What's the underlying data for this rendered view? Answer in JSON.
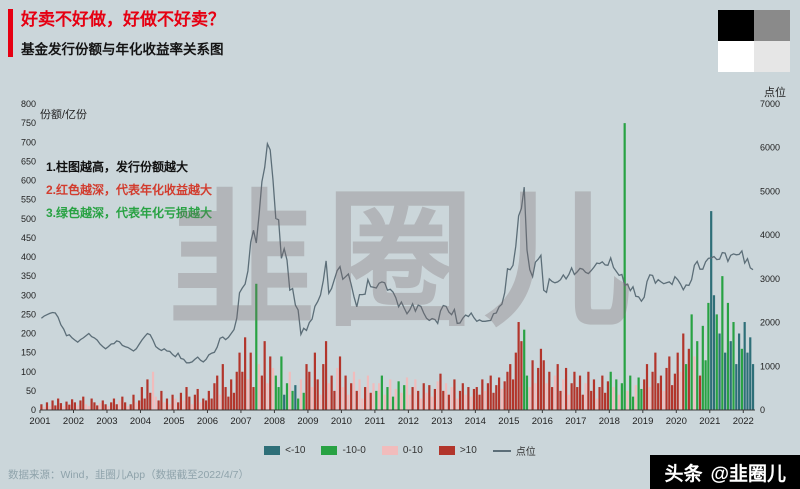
{
  "header": {
    "title": "好卖不好做，好做不好卖？",
    "subtitle": "基金发行份额与年化收益率关系图"
  },
  "annotations": [
    {
      "text": "1.柱图越高，发行份额越大"
    },
    {
      "text": "2.红色越深，代表年化收益越大"
    },
    {
      "text": "3.绿色越深，代表年化亏损越大"
    }
  ],
  "watermark": "韭圈儿",
  "footer": {
    "source": "数据来源：Wind，韭圈儿App（数据截至2022/4/7）",
    "badge_brand": "头条",
    "badge_handle": "@韭圈儿"
  },
  "chart_data": {
    "type": "bar+line",
    "title": "基金发行份额与年化收益率关系图",
    "left_axis": {
      "label": "份额/亿份",
      "min": 0,
      "max": 800,
      "ticks": [
        0,
        50,
        100,
        150,
        200,
        250,
        300,
        350,
        400,
        450,
        500,
        550,
        600,
        650,
        700,
        750,
        800
      ]
    },
    "right_axis": {
      "label": "点位",
      "min": 0,
      "max": 7000,
      "ticks": [
        0,
        1000,
        2000,
        3000,
        4000,
        5000,
        6000,
        7000
      ]
    },
    "x_axis": {
      "ticks": [
        2001,
        2002,
        2003,
        2004,
        2005,
        2006,
        2007,
        2008,
        2009,
        2010,
        2011,
        2012,
        2013,
        2014,
        2015,
        2016,
        2017,
        2018,
        2019,
        2020,
        2021,
        2022
      ]
    },
    "x_range": [
      2001,
      2022.35
    ],
    "colors": {
      "a": "#2e6f78",
      "b": "#28a243",
      "c": "#f1bcbc",
      "d": "#b2352b"
    },
    "line_color": "#5c6e78",
    "legend": [
      {
        "label": "<-10",
        "color": "#2e6f78",
        "type": "box"
      },
      {
        "label": "-10-0",
        "color": "#28a243",
        "type": "box"
      },
      {
        "label": "0-10",
        "color": "#f1bcbc",
        "type": "box"
      },
      {
        "label": ">10",
        "color": "#b2352b",
        "type": "box"
      },
      {
        "label": "点位",
        "color": "#5c6e78",
        "type": "line"
      }
    ],
    "bars_by_year": {
      "2001": [
        [
          15,
          "d"
        ],
        [
          8,
          "c"
        ],
        [
          20,
          "d"
        ],
        [
          10,
          "c"
        ],
        [
          25,
          "d"
        ],
        [
          12,
          "d"
        ],
        [
          30,
          "d"
        ],
        [
          18,
          "d"
        ],
        [
          10,
          "c"
        ],
        [
          22,
          "d"
        ],
        [
          14,
          "d"
        ],
        [
          28,
          "d"
        ]
      ],
      "2002": [
        [
          20,
          "d"
        ],
        [
          12,
          "c"
        ],
        [
          25,
          "d"
        ],
        [
          35,
          "d"
        ],
        [
          15,
          "c"
        ],
        [
          10,
          "c"
        ],
        [
          30,
          "d"
        ],
        [
          20,
          "d"
        ],
        [
          12,
          "d"
        ],
        [
          18,
          "c"
        ],
        [
          25,
          "d"
        ],
        [
          15,
          "d"
        ]
      ],
      "2003": [
        [
          10,
          "c"
        ],
        [
          20,
          "d"
        ],
        [
          30,
          "d"
        ],
        [
          15,
          "d"
        ],
        [
          25,
          "c"
        ],
        [
          35,
          "d"
        ],
        [
          20,
          "d"
        ],
        [
          10,
          "c"
        ],
        [
          15,
          "d"
        ],
        [
          40,
          "d"
        ],
        [
          20,
          "c"
        ],
        [
          25,
          "d"
        ]
      ],
      "2004": [
        [
          60,
          "d"
        ],
        [
          30,
          "d"
        ],
        [
          80,
          "d"
        ],
        [
          45,
          "d"
        ],
        [
          100,
          "c"
        ],
        [
          35,
          "c"
        ],
        [
          25,
          "d"
        ],
        [
          50,
          "d"
        ],
        [
          20,
          "c"
        ],
        [
          30,
          "d"
        ],
        [
          15,
          "c"
        ],
        [
          40,
          "d"
        ]
      ],
      "2005": [
        [
          30,
          "c"
        ],
        [
          20,
          "d"
        ],
        [
          45,
          "d"
        ],
        [
          25,
          "c"
        ],
        [
          60,
          "d"
        ],
        [
          35,
          "d"
        ],
        [
          15,
          "c"
        ],
        [
          40,
          "d"
        ],
        [
          55,
          "d"
        ],
        [
          20,
          "c"
        ],
        [
          30,
          "d"
        ],
        [
          25,
          "d"
        ]
      ],
      "2006": [
        [
          50,
          "d"
        ],
        [
          30,
          "d"
        ],
        [
          70,
          "d"
        ],
        [
          90,
          "d"
        ],
        [
          40,
          "c"
        ],
        [
          120,
          "d"
        ],
        [
          60,
          "d"
        ],
        [
          35,
          "d"
        ],
        [
          80,
          "d"
        ],
        [
          45,
          "d"
        ],
        [
          100,
          "d"
        ],
        [
          150,
          "d"
        ]
      ],
      "2007": [
        [
          100,
          "d"
        ],
        [
          190,
          "d"
        ],
        [
          80,
          "c"
        ],
        [
          150,
          "d"
        ],
        [
          60,
          "d"
        ],
        [
          330,
          "b"
        ],
        [
          120,
          "c"
        ],
        [
          90,
          "d"
        ],
        [
          180,
          "d"
        ],
        [
          70,
          "c"
        ],
        [
          140,
          "d"
        ],
        [
          110,
          "c"
        ]
      ],
      "2008": [
        [
          90,
          "b"
        ],
        [
          60,
          "b"
        ],
        [
          140,
          "b"
        ],
        [
          40,
          "a"
        ],
        [
          70,
          "b"
        ],
        [
          100,
          "c"
        ],
        [
          50,
          "b"
        ],
        [
          65,
          "a"
        ],
        [
          30,
          "b"
        ],
        [
          80,
          "c"
        ],
        [
          45,
          "b"
        ],
        [
          120,
          "d"
        ]
      ],
      "2009": [
        [
          100,
          "d"
        ],
        [
          60,
          "c"
        ],
        [
          150,
          "d"
        ],
        [
          80,
          "d"
        ],
        [
          40,
          "c"
        ],
        [
          120,
          "d"
        ],
        [
          180,
          "d"
        ],
        [
          70,
          "c"
        ],
        [
          90,
          "d"
        ],
        [
          50,
          "d"
        ],
        [
          110,
          "c"
        ],
        [
          140,
          "d"
        ]
      ],
      "2010": [
        [
          60,
          "c"
        ],
        [
          90,
          "d"
        ],
        [
          40,
          "c"
        ],
        [
          70,
          "d"
        ],
        [
          100,
          "c"
        ],
        [
          50,
          "d"
        ],
        [
          80,
          "c"
        ],
        [
          30,
          "c"
        ],
        [
          60,
          "d"
        ],
        [
          90,
          "c"
        ],
        [
          45,
          "d"
        ],
        [
          70,
          "c"
        ]
      ],
      "2011": [
        [
          50,
          "b"
        ],
        [
          70,
          "c"
        ],
        [
          90,
          "b"
        ],
        [
          40,
          "c"
        ],
        [
          60,
          "b"
        ],
        [
          80,
          "c"
        ],
        [
          35,
          "b"
        ],
        [
          55,
          "c"
        ],
        [
          75,
          "b"
        ],
        [
          45,
          "c"
        ],
        [
          65,
          "b"
        ],
        [
          85,
          "c"
        ]
      ],
      "2012": [
        [
          40,
          "c"
        ],
        [
          60,
          "d"
        ],
        [
          80,
          "c"
        ],
        [
          50,
          "d"
        ],
        [
          30,
          "c"
        ],
        [
          70,
          "d"
        ],
        [
          45,
          "c"
        ],
        [
          65,
          "d"
        ],
        [
          35,
          "c"
        ],
        [
          55,
          "d"
        ],
        [
          75,
          "c"
        ],
        [
          95,
          "d"
        ]
      ],
      "2013": [
        [
          50,
          "d"
        ],
        [
          70,
          "c"
        ],
        [
          40,
          "d"
        ],
        [
          60,
          "c"
        ],
        [
          80,
          "d"
        ],
        [
          30,
          "c"
        ],
        [
          50,
          "d"
        ],
        [
          70,
          "d"
        ],
        [
          40,
          "c"
        ],
        [
          60,
          "d"
        ],
        [
          35,
          "c"
        ],
        [
          55,
          "d"
        ]
      ],
      "2014": [
        [
          60,
          "d"
        ],
        [
          40,
          "d"
        ],
        [
          80,
          "d"
        ],
        [
          50,
          "c"
        ],
        [
          70,
          "d"
        ],
        [
          90,
          "d"
        ],
        [
          45,
          "d"
        ],
        [
          65,
          "d"
        ],
        [
          85,
          "d"
        ],
        [
          55,
          "c"
        ],
        [
          75,
          "d"
        ],
        [
          100,
          "d"
        ]
      ],
      "2015": [
        [
          120,
          "d"
        ],
        [
          80,
          "d"
        ],
        [
          150,
          "d"
        ],
        [
          230,
          "d"
        ],
        [
          180,
          "d"
        ],
        [
          210,
          "b"
        ],
        [
          90,
          "b"
        ],
        [
          60,
          "c"
        ],
        [
          130,
          "d"
        ],
        [
          70,
          "c"
        ],
        [
          110,
          "d"
        ],
        [
          160,
          "d"
        ]
      ],
      "2016": [
        [
          130,
          "d"
        ],
        [
          70,
          "c"
        ],
        [
          100,
          "d"
        ],
        [
          60,
          "d"
        ],
        [
          90,
          "c"
        ],
        [
          120,
          "d"
        ],
        [
          50,
          "d"
        ],
        [
          80,
          "c"
        ],
        [
          110,
          "d"
        ],
        [
          40,
          "c"
        ],
        [
          70,
          "d"
        ],
        [
          100,
          "d"
        ]
      ],
      "2017": [
        [
          60,
          "d"
        ],
        [
          90,
          "d"
        ],
        [
          40,
          "d"
        ],
        [
          70,
          "c"
        ],
        [
          100,
          "d"
        ],
        [
          50,
          "d"
        ],
        [
          80,
          "d"
        ],
        [
          30,
          "c"
        ],
        [
          60,
          "d"
        ],
        [
          90,
          "d"
        ],
        [
          45,
          "d"
        ],
        [
          75,
          "d"
        ]
      ],
      "2018": [
        [
          100,
          "b"
        ],
        [
          60,
          "c"
        ],
        [
          80,
          "b"
        ],
        [
          40,
          "c"
        ],
        [
          70,
          "b"
        ],
        [
          750,
          "b"
        ],
        [
          50,
          "c"
        ],
        [
          90,
          "b"
        ],
        [
          35,
          "b"
        ],
        [
          65,
          "c"
        ],
        [
          85,
          "b"
        ],
        [
          55,
          "b"
        ]
      ],
      "2019": [
        [
          80,
          "d"
        ],
        [
          120,
          "d"
        ],
        [
          60,
          "c"
        ],
        [
          100,
          "d"
        ],
        [
          150,
          "d"
        ],
        [
          70,
          "d"
        ],
        [
          90,
          "d"
        ],
        [
          50,
          "c"
        ],
        [
          110,
          "d"
        ],
        [
          140,
          "d"
        ],
        [
          65,
          "d"
        ],
        [
          95,
          "d"
        ]
      ],
      "2020": [
        [
          150,
          "d"
        ],
        [
          100,
          "c"
        ],
        [
          200,
          "d"
        ],
        [
          120,
          "b"
        ],
        [
          160,
          "d"
        ],
        [
          250,
          "b"
        ],
        [
          140,
          "c"
        ],
        [
          180,
          "b"
        ],
        [
          90,
          "d"
        ],
        [
          220,
          "b"
        ],
        [
          130,
          "b"
        ],
        [
          280,
          "b"
        ]
      ],
      "2021": [
        [
          520,
          "a"
        ],
        [
          300,
          "a"
        ],
        [
          250,
          "b"
        ],
        [
          200,
          "a"
        ],
        [
          350,
          "b"
        ],
        [
          150,
          "a"
        ],
        [
          280,
          "b"
        ],
        [
          180,
          "a"
        ],
        [
          230,
          "b"
        ],
        [
          120,
          "a"
        ],
        [
          200,
          "a"
        ],
        [
          160,
          "b"
        ]
      ],
      "2022": [
        [
          230,
          "a"
        ],
        [
          150,
          "a"
        ],
        [
          190,
          "a"
        ],
        [
          120,
          "a"
        ]
      ]
    },
    "line_by_year": {
      "2001": [
        2100,
        2150,
        2180,
        2210,
        2230,
        2220,
        2120,
        1950,
        1850,
        1700,
        1720,
        1650
      ],
      "2002": [
        1600,
        1550,
        1610,
        1650,
        1700,
        1750,
        1680,
        1650,
        1600,
        1510,
        1450,
        1400
      ],
      "2003": [
        1450,
        1510,
        1520,
        1580,
        1560,
        1480,
        1450,
        1430,
        1390,
        1350,
        1400,
        1500
      ],
      "2004": [
        1600,
        1680,
        1750,
        1720,
        1600,
        1450,
        1400,
        1360,
        1400,
        1350,
        1340,
        1270
      ],
      "2005": [
        1220,
        1300,
        1180,
        1160,
        1080,
        1080,
        1100,
        1160,
        1210,
        1140,
        1100,
        1160
      ],
      "2006": [
        1260,
        1300,
        1320,
        1440,
        1640,
        1670,
        1610,
        1660,
        1750,
        1840,
        2100,
        2680
      ],
      "2007": [
        2790,
        2880,
        3180,
        3840,
        4110,
        3820,
        4470,
        5220,
        5550,
        6090,
        5950,
        5260
      ],
      "2008": [
        4380,
        4350,
        3470,
        3690,
        3430,
        2740,
        2780,
        2400,
        2290,
        1730,
        1870,
        1820
      ],
      "2009": [
        2000,
        2080,
        2370,
        2480,
        2630,
        2960,
        3410,
        2670,
        2780,
        2990,
        3190,
        3280
      ],
      "2010": [
        2990,
        3050,
        3110,
        2870,
        2590,
        2360,
        2640,
        2640,
        2650,
        2980,
        2820,
        2810
      ],
      "2011": [
        2790,
        2900,
        2930,
        2910,
        2740,
        2760,
        2700,
        2570,
        2360,
        2470,
        2330,
        2200
      ],
      "2012": [
        2290,
        2430,
        2260,
        2400,
        2370,
        2220,
        2100,
        2050,
        2090,
        2070,
        1980,
        2270
      ],
      "2013": [
        2390,
        2370,
        2240,
        2180,
        2300,
        1980,
        1990,
        2100,
        2170,
        2140,
        2220,
        2110
      ],
      "2014": [
        2030,
        2060,
        2030,
        2030,
        2040,
        2050,
        2200,
        2220,
        2360,
        2420,
        2680,
        3230
      ],
      "2015": [
        3210,
        3310,
        3750,
        4440,
        4610,
        5100,
        3660,
        3210,
        3050,
        3380,
        3450,
        3540
      ],
      "2016": [
        2740,
        2690,
        3000,
        2940,
        2910,
        2930,
        2980,
        3090,
        3000,
        3100,
        3250,
        3100
      ],
      "2017": [
        3160,
        3240,
        3220,
        3150,
        3120,
        3190,
        3270,
        3360,
        3350,
        3390,
        3320,
        3310
      ],
      "2018": [
        3480,
        3260,
        3170,
        3080,
        3100,
        2850,
        2880,
        2730,
        2820,
        2600,
        2590,
        2490
      ],
      "2019": [
        2580,
        2940,
        3090,
        3080,
        2900,
        2980,
        2930,
        2890,
        2910,
        2930,
        2870,
        3050
      ],
      "2020": [
        2980,
        2880,
        2750,
        2860,
        2850,
        2980,
        3310,
        3400,
        3220,
        3220,
        3390,
        3470
      ],
      "2021": [
        3480,
        3510,
        3440,
        3450,
        3600,
        3590,
        3400,
        3540,
        3570,
        3550,
        3560,
        3640
      ],
      "2022": [
        3360,
        3460,
        3250,
        3210
      ]
    }
  }
}
